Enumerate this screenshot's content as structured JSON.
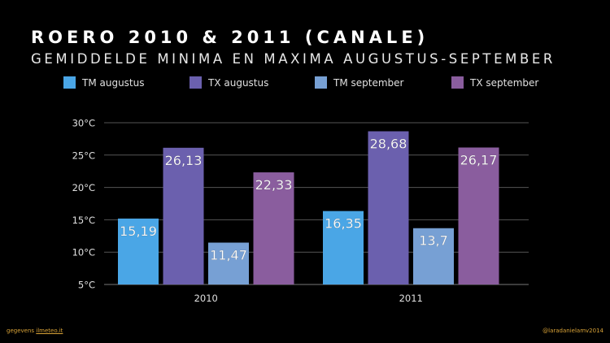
{
  "header": {
    "title": "ROERO 2010 & 2011 (CANALE)",
    "subtitle": "GEMIDDELDE MINIMA EN MAXIMA AUGUSTUS-SEPTEMBER"
  },
  "footer": {
    "source_prefix": "gegevens",
    "source_link": "ilmeteo.it",
    "credit": "@laradanielamv2014"
  },
  "chart_data": {
    "type": "bar",
    "title": "ROERO 2010 & 2011 (CANALE)",
    "subtitle": "GEMIDDELDE MINIMA EN MAXIMA AUGUSTUS-SEPTEMBER",
    "xlabel": "",
    "ylabel": "",
    "categories": [
      "2010",
      "2011"
    ],
    "series": [
      {
        "name": "TM augustus",
        "color": "#4aa6e6",
        "values": [
          15.19,
          16.35
        ],
        "labels": [
          "15,19",
          "16,35"
        ]
      },
      {
        "name": "TX augustus",
        "color": "#6b60ae",
        "values": [
          26.13,
          28.68
        ],
        "labels": [
          "26,13",
          "28,68"
        ]
      },
      {
        "name": "TM september",
        "color": "#77a0d4",
        "values": [
          11.47,
          13.7
        ],
        "labels": [
          "11,47",
          "13,7"
        ]
      },
      {
        "name": "TX september",
        "color": "#8a5d9e",
        "values": [
          22.33,
          26.17
        ],
        "labels": [
          "22,33",
          "26,17"
        ]
      }
    ],
    "ylim": [
      5,
      30
    ],
    "yticks": [
      5,
      10,
      15,
      20,
      25,
      30
    ],
    "ytick_labels": [
      "5°C",
      "10°C",
      "15°C",
      "20°C",
      "25°C",
      "30°C"
    ],
    "grid": true,
    "legend_position": "top"
  }
}
